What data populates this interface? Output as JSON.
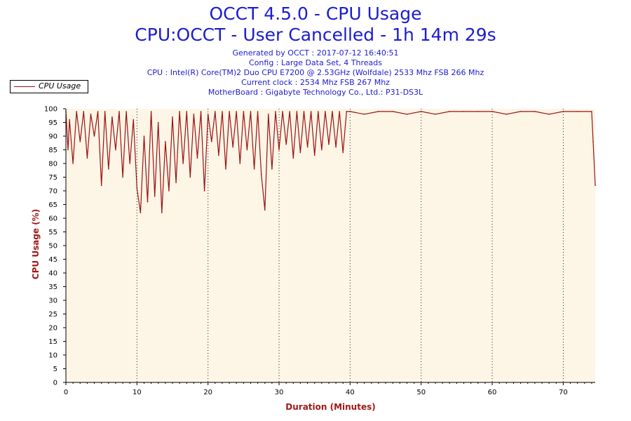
{
  "chart_data": {
    "type": "line",
    "title": "OCCT 4.5.0 - CPU Usage",
    "subtitle": "CPU:OCCT - User Cancelled - 1h 14m 29s",
    "info_lines": [
      "Generated by OCCT : 2017-07-12 16:40:51",
      "Config : Large Data Set, 4 Threads",
      "CPU : Intel(R) Core(TM)2 Duo CPU E7200 @ 2.53GHz (Wolfdale) 2533 Mhz FSB 266 Mhz",
      "Current clock : 2534 Mhz FSB 267 Mhz",
      "MotherBoard : Gigabyte Technology Co., Ltd.: P31-DS3L"
    ],
    "xlabel": "Duration (Minutes)",
    "ylabel": "CPU Usage (%)",
    "xlim": [
      0,
      74.5
    ],
    "ylim": [
      0,
      100
    ],
    "x_ticks": [
      "0",
      "10",
      "20",
      "30",
      "40",
      "50",
      "60",
      "70"
    ],
    "y_ticks": [
      "0",
      "5",
      "10",
      "15",
      "20",
      "25",
      "30",
      "35",
      "40",
      "45",
      "50",
      "55",
      "60",
      "65",
      "70",
      "75",
      "80",
      "85",
      "90",
      "95",
      "100"
    ],
    "grid": "vertical dotted",
    "legend_position": "top-left",
    "colors": {
      "line": "#9b1111",
      "plot_bg": "#fdf5e6",
      "axis_label": "#a01818",
      "title": "#1c1ccf"
    },
    "series": [
      {
        "name": "CPU Usage",
        "x": [
          0,
          0.3,
          0.5,
          1,
          1.5,
          2,
          2.5,
          3,
          3.5,
          4,
          4.5,
          5,
          5.5,
          6,
          6.5,
          7,
          7.5,
          8,
          8.5,
          9,
          9.5,
          10,
          10.5,
          11,
          11.5,
          12,
          12.5,
          13,
          13.5,
          14,
          14.5,
          15,
          15.5,
          16,
          16.5,
          17,
          17.5,
          18,
          18.5,
          19,
          19.5,
          20,
          20.5,
          21,
          21.5,
          22,
          22.5,
          23,
          23.5,
          24,
          24.5,
          25,
          25.5,
          26,
          26.5,
          27,
          27.5,
          28,
          28.5,
          29,
          29.5,
          30,
          30.5,
          31,
          31.5,
          32,
          32.5,
          33,
          33.5,
          34,
          34.5,
          35,
          35.5,
          36,
          36.5,
          37,
          37.5,
          38,
          38.5,
          39,
          39.5,
          40,
          42,
          44,
          46,
          48,
          50,
          52,
          54,
          56,
          58,
          60,
          62,
          64,
          66,
          68,
          70,
          72,
          74,
          74.2,
          74.5
        ],
        "values": [
          99,
          85,
          96,
          80,
          99,
          88,
          99,
          82,
          98,
          90,
          99,
          72,
          99,
          78,
          97,
          85,
          99,
          75,
          99,
          80,
          96,
          71,
          62,
          90,
          66,
          99,
          68,
          95,
          62,
          88,
          70,
          97,
          73,
          99,
          80,
          99,
          75,
          98,
          82,
          99,
          70,
          98,
          88,
          99,
          83,
          99,
          78,
          99,
          86,
          99,
          80,
          99,
          85,
          99,
          78,
          99,
          76,
          63,
          98,
          78,
          99,
          85,
          99,
          87,
          99,
          82,
          99,
          84,
          99,
          86,
          99,
          83,
          99,
          85,
          99,
          87,
          99,
          86,
          99,
          84,
          99,
          99,
          98,
          99,
          99,
          98,
          99,
          98,
          99,
          99,
          99,
          99,
          98,
          99,
          99,
          98,
          99,
          99,
          99,
          88,
          72
        ]
      }
    ]
  }
}
